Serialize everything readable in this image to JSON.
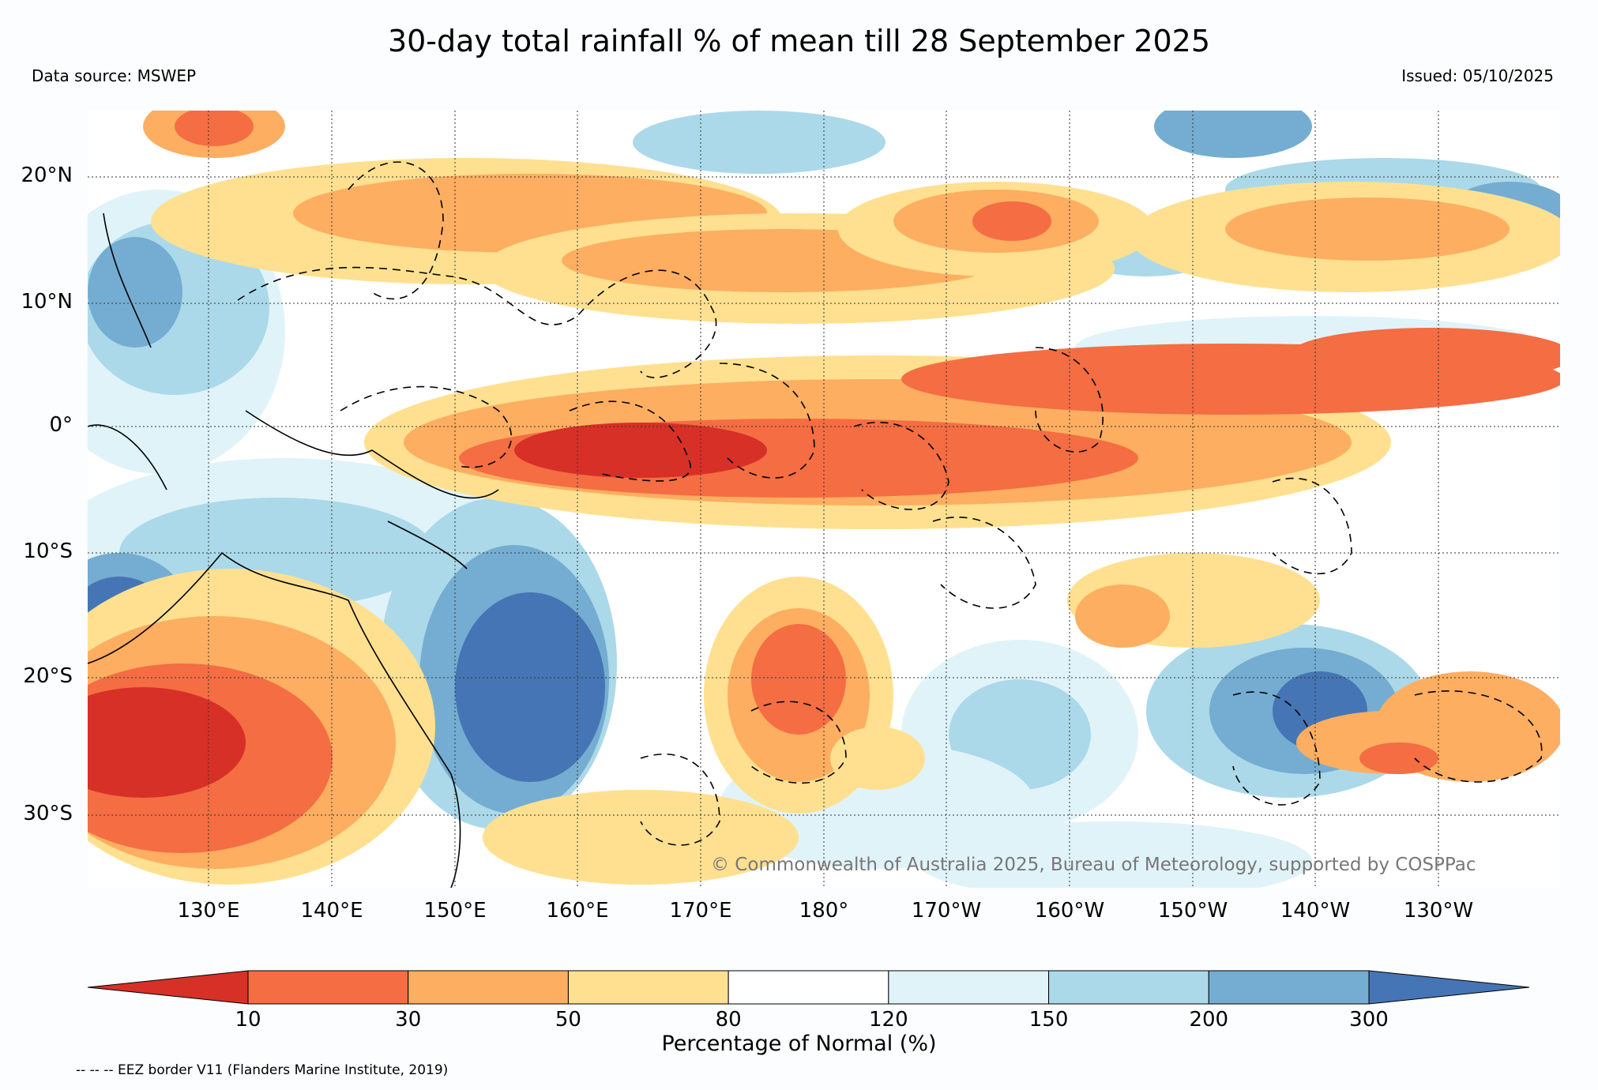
{
  "header": {
    "title": "30-day total rainfall % of mean till 28 September 2025",
    "source": "Data source: MSWEP",
    "issued": "Issued: 05/10/2025"
  },
  "map": {
    "lat_labels": [
      "20°N",
      "10°N",
      "0°",
      "10°S",
      "20°S",
      "30°S"
    ],
    "lon_labels": [
      "130°E",
      "140°E",
      "150°E",
      "160°E",
      "170°E",
      "180°",
      "170°W",
      "160°W",
      "150°W",
      "140°W",
      "130°W"
    ],
    "copyright": "© Commonwealth of Australia 2025, Bureau of Meteorology, supported by COSPPac"
  },
  "colorbar": {
    "ticks": [
      "10",
      "30",
      "50",
      "80",
      "120",
      "150",
      "200",
      "300"
    ],
    "unit_label": "Percentage of Normal (%)",
    "colors": [
      "#d73027",
      "#f46d43",
      "#fdae61",
      "#fee090",
      "#ffffff",
      "#e0f3f8",
      "#abd9e9",
      "#74add1",
      "#4575b4"
    ]
  },
  "footer": {
    "eez_note": "-- -- -- EEZ border V11 (Flanders Marine Institute, 2019)"
  }
}
